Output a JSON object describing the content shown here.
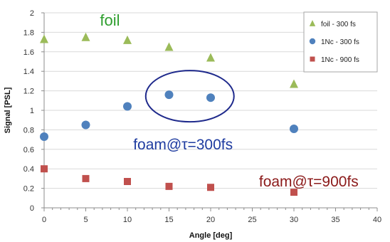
{
  "chart_data": {
    "type": "scatter",
    "xlabel": "Angle [deg]",
    "ylabel": "Signal [PSL]",
    "xlim": [
      0,
      40
    ],
    "ylim": [
      0,
      2
    ],
    "xticks": [
      "0",
      "5",
      "10",
      "15",
      "20",
      "25",
      "30",
      "35",
      "40"
    ],
    "yticks": [
      "0",
      "0.2",
      "0.4",
      "0.6",
      "0.8",
      "1",
      "1.2",
      "1.4",
      "1.6",
      "1.8",
      "2"
    ],
    "grid": "horizontal",
    "legend_position": "top-right",
    "series": [
      {
        "name": "foil  - 300 fs",
        "marker": "triangle",
        "color": "#9bbb59",
        "x": [
          0,
          5,
          10,
          15,
          20,
          30
        ],
        "y": [
          1.73,
          1.75,
          1.72,
          1.65,
          1.54,
          1.27
        ]
      },
      {
        "name": "1Nc - 300 fs",
        "marker": "circle",
        "color": "#4f81bd",
        "x": [
          0,
          5,
          10,
          15,
          20,
          30
        ],
        "y": [
          0.73,
          0.85,
          1.04,
          1.16,
          1.13,
          0.81
        ]
      },
      {
        "name": "1Nc - 900 fs",
        "marker": "square",
        "color": "#c0504d",
        "x": [
          0,
          5,
          10,
          15,
          20,
          30
        ],
        "y": [
          0.4,
          0.3,
          0.27,
          0.22,
          0.21,
          0.16
        ]
      }
    ],
    "annotations": [
      {
        "id": "foil",
        "text": "foil",
        "color": "#2e9e2e"
      },
      {
        "id": "foam300",
        "text": "foam@τ=300fs",
        "color": "#1f3ca0"
      },
      {
        "id": "foam900",
        "text": "foam@τ=900fs",
        "color": "#8b1a1a"
      }
    ],
    "highlight_ellipse_color": "#1f2a8c"
  }
}
